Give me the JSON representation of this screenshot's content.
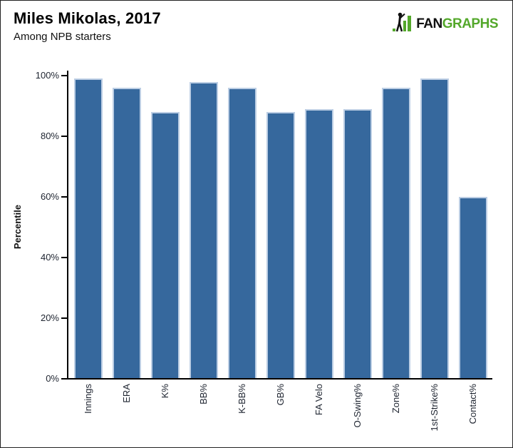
{
  "header": {
    "title": "Miles Mikolas, 2017",
    "subtitle": "Among NPB starters"
  },
  "logo": {
    "fan": "FAN",
    "graphs": "GRAPHS",
    "green": "#54A82B",
    "black": "#101010"
  },
  "chart_data": {
    "type": "bar",
    "title": "Miles Mikolas, 2017",
    "subtitle": "Among NPB starters",
    "categories": [
      "Innings",
      "ERA",
      "K%",
      "BB%",
      "K-BB%",
      "GB%",
      "FA Velo",
      "O-Swing%",
      "Zone%",
      "1st-Strike%",
      "Contact%"
    ],
    "values": [
      99,
      96,
      88,
      98,
      96,
      88,
      89,
      89,
      96,
      99,
      60
    ],
    "ylabel": "Percentile",
    "xlabel": "",
    "ylim": [
      0,
      100
    ],
    "yticks": [
      0,
      20,
      40,
      60,
      80,
      100
    ],
    "ytick_labels": [
      "0%",
      "20%",
      "40%",
      "60%",
      "80%",
      "100%"
    ],
    "grid": false,
    "legend": false,
    "bar_color": "#36689D",
    "bar_border_color": "#BCCEE4",
    "axis_color": "#000000",
    "tick_text_color": "#1E2430"
  }
}
